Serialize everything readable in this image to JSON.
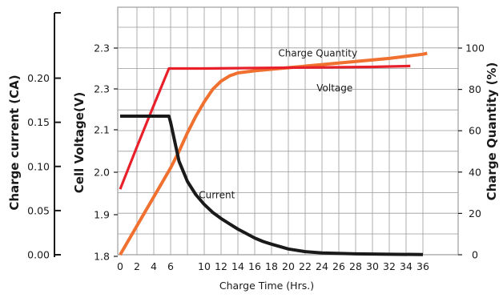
{
  "chart_data": {
    "type": "line",
    "xlabel": "Charge Time (Hrs.)",
    "x_ticks": [
      "0",
      "2",
      "4",
      "6",
      "10",
      "12",
      "14",
      "16",
      "18",
      "20",
      "22",
      "24",
      "26",
      "28",
      "30",
      "32",
      "34",
      "36"
    ],
    "xlim": [
      0,
      36
    ],
    "grid": true,
    "axes": {
      "current": {
        "label": "Charge current (CA)",
        "ticks": [
          "0.00",
          "0.05",
          "0.10",
          "0.15",
          "0.20"
        ],
        "ylim": [
          0.0,
          0.225
        ]
      },
      "voltage": {
        "label": "Cell Voltage(V)",
        "ticks": [
          "1.8",
          "1.9",
          "2.0",
          "2.1",
          "2.3",
          "2.3"
        ]
      },
      "quantity": {
        "label": "Charge Quantity (%)",
        "ticks": [
          "0",
          "20",
          "40",
          "60",
          "80",
          "100"
        ],
        "ylim": [
          0,
          100
        ]
      }
    },
    "series": [
      {
        "name": "Charge Quantity",
        "axis": "quantity",
        "color": "#f07030",
        "x": [
          0,
          1,
          2,
          3,
          4,
          5,
          6,
          7,
          8,
          9,
          10,
          11,
          12,
          13,
          14,
          16,
          20,
          24,
          28,
          32,
          36,
          36.5
        ],
        "y": [
          0,
          7,
          14,
          21,
          28,
          35,
          42,
          50,
          59,
          67,
          74,
          80,
          84,
          86.5,
          88,
          89,
          90.5,
          92,
          93.5,
          95,
          97,
          97.5
        ]
      },
      {
        "name": "Voltage",
        "axis": "voltage",
        "color": "#e8202a",
        "x": [
          0,
          2,
          4,
          5.8,
          10,
          20,
          30,
          34.5
        ],
        "y": [
          1.96,
          2.06,
          2.16,
          2.25,
          2.25,
          2.252,
          2.254,
          2.256
        ]
      },
      {
        "name": "Current",
        "axis": "current",
        "color": "#1a1a1a",
        "x": [
          0,
          5.8,
          6,
          7,
          8,
          9,
          10,
          11,
          12,
          13,
          14,
          15,
          16,
          17,
          18,
          20,
          22,
          24,
          28,
          32,
          36
        ],
        "y": [
          0.157,
          0.157,
          0.15,
          0.106,
          0.083,
          0.068,
          0.057,
          0.048,
          0.041,
          0.035,
          0.029,
          0.024,
          0.019,
          0.015,
          0.012,
          0.0065,
          0.0035,
          0.002,
          0.001,
          0.0005,
          0.0003
        ]
      }
    ],
    "annotations": [
      {
        "text": "Charge Quantity",
        "x": 23.5,
        "y": 96
      },
      {
        "text": "Voltage",
        "x": 25.5,
        "y": 79
      },
      {
        "text": "Current",
        "x": 11.5,
        "y": 0.064
      }
    ]
  }
}
